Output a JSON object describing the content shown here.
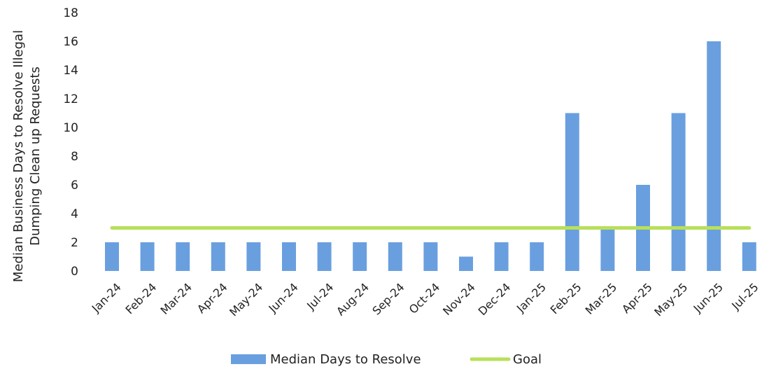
{
  "chart_data": {
    "type": "bar",
    "categories": [
      "Jan-24",
      "Feb-24",
      "Mar-24",
      "Apr-24",
      "May-24",
      "Jun-24",
      "Jul-24",
      "Aug-24",
      "Sep-24",
      "Oct-24",
      "Nov-24",
      "Dec-24",
      "Jan-25",
      "Feb-25",
      "Mar-25",
      "Apr-25",
      "May-25",
      "Jun-25",
      "Jul-25"
    ],
    "series": [
      {
        "name": "Median Days to Resolve",
        "type": "bar",
        "color": "#6a9fdf",
        "values": [
          2,
          2,
          2,
          2,
          2,
          2,
          2,
          2,
          2,
          2,
          1,
          2,
          2,
          11,
          3,
          6,
          11,
          16,
          2
        ]
      },
      {
        "name": "Goal",
        "type": "line",
        "color": "#b8e05a",
        "values": [
          3,
          3,
          3,
          3,
          3,
          3,
          3,
          3,
          3,
          3,
          3,
          3,
          3,
          3,
          3,
          3,
          3,
          3,
          3
        ]
      }
    ],
    "ylim": [
      0,
      18
    ],
    "yticks": [
      0,
      2,
      4,
      6,
      8,
      10,
      12,
      14,
      16,
      18
    ],
    "ylabel_lines": [
      "Median Business Days to Resolve Illegal",
      "Dumping Clean up Requests"
    ],
    "grid": false,
    "legend_position": "bottom"
  }
}
